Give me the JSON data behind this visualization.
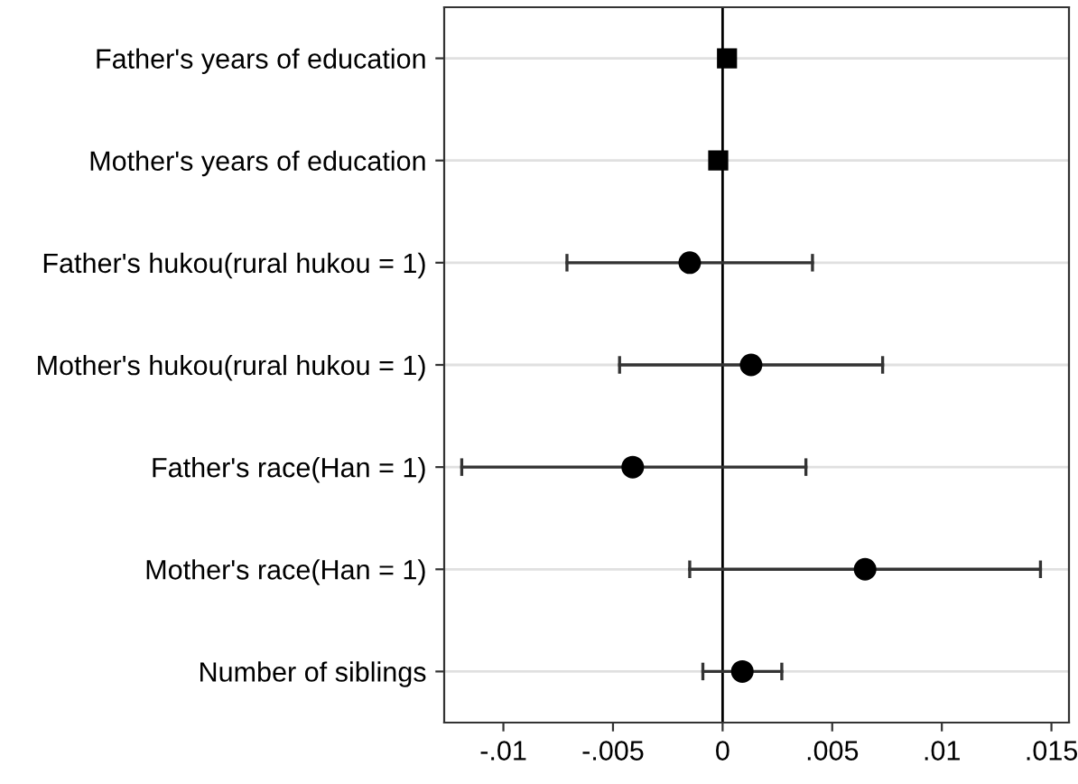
{
  "chart_data": {
    "type": "scatter",
    "orientation": "horizontal",
    "categories": [
      "Father's years of education",
      "Mother's years of education",
      "Father's hukou(rural hukou = 1)",
      "Mother's hukou(rural hukou = 1)",
      "Father's race(Han = 1)",
      "Mother's race(Han = 1)",
      "Number of siblings"
    ],
    "series": [
      {
        "color": "#000000",
        "marker": "square",
        "values": [
          0.0002,
          -0.0002,
          null,
          null,
          null,
          null,
          null
        ],
        "errors": [
          0.0002,
          0.0001,
          null,
          null,
          null,
          null,
          null
        ]
      },
      {
        "color": "#000000",
        "marker": "circle",
        "values": [
          null,
          null,
          -0.0015,
          0.0013,
          -0.0041,
          0.0065,
          0.0009
        ],
        "errors": [
          null,
          null,
          [
            -0.0071,
            0.0041
          ],
          [
            -0.0047,
            0.0073
          ],
          [
            -0.0119,
            0.0038
          ],
          [
            -0.0015,
            0.0145
          ],
          [
            -0.0009,
            0.0027
          ]
        ]
      }
    ],
    "xlim": [
      -0.0127,
      0.0158
    ],
    "xticks": [
      {
        "value": -0.01,
        "label": "-.01"
      },
      {
        "value": -0.005,
        "label": "-.005"
      },
      0,
      {
        "value": 0.005,
        "label": ".005"
      },
      {
        "value": 0.01,
        "label": ".01"
      },
      {
        "value": 0.015,
        "label": ".015"
      }
    ],
    "grid": "y",
    "legend": false,
    "ref_lines": [
      {
        "axis": "x",
        "value": 0,
        "color": "#000000"
      }
    ]
  }
}
